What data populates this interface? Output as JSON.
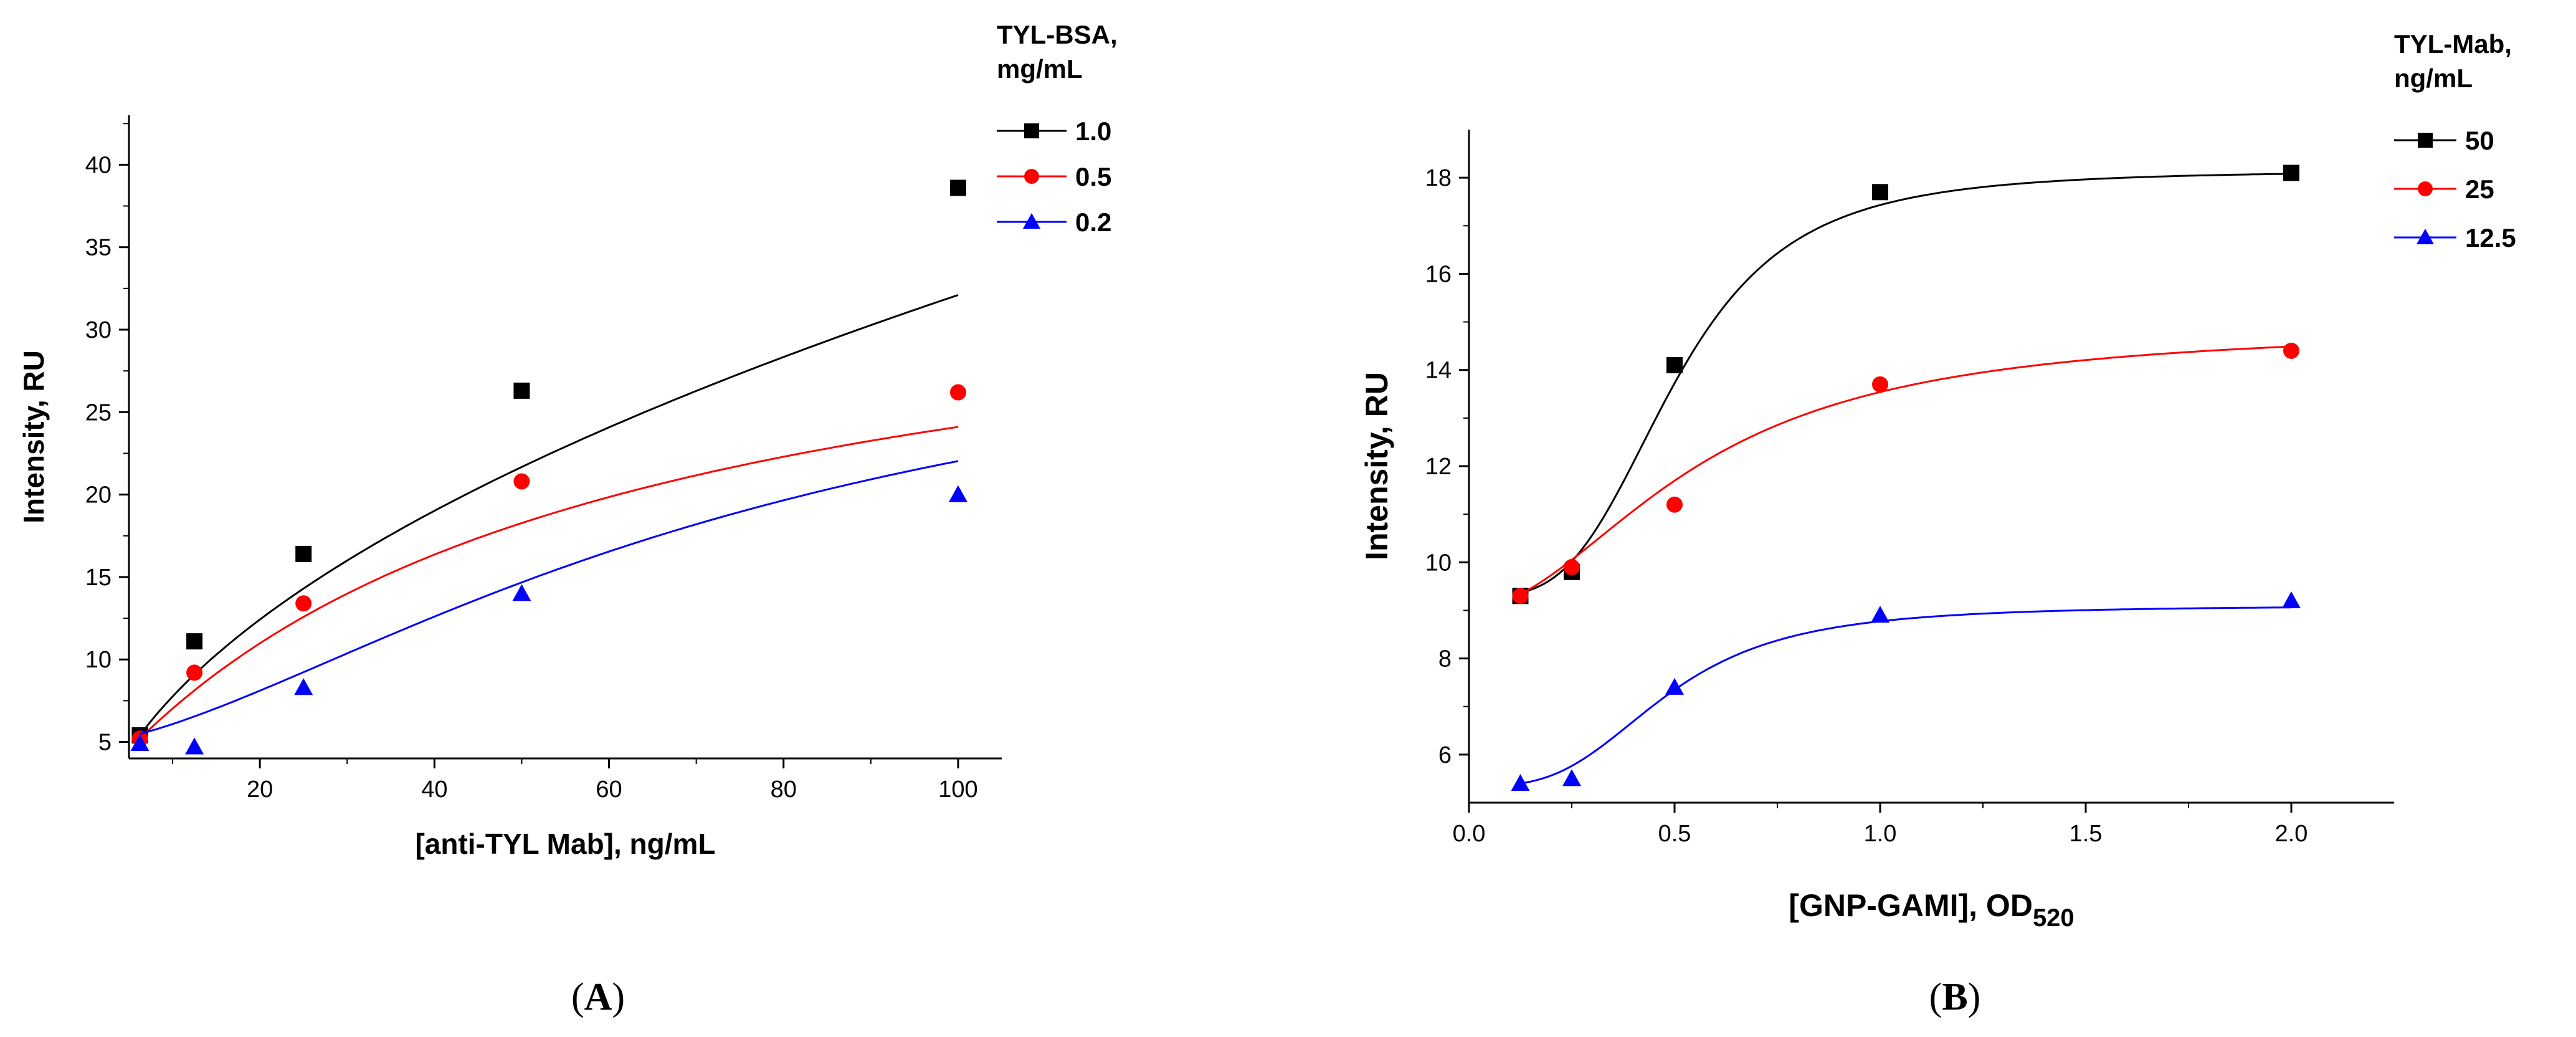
{
  "chart_data": [
    {
      "type": "scatter",
      "panel_label": "A",
      "panel_label_open": "(",
      "panel_label_close": ")",
      "xlabel": "[anti-TYL Mab], ng/mL",
      "ylabel": "Intensity, RU",
      "xlim": [
        5,
        105
      ],
      "ylim": [
        4,
        43
      ],
      "xticks": [
        20,
        40,
        60,
        80,
        100
      ],
      "yticks": [
        5,
        10,
        15,
        20,
        25,
        30,
        35,
        40
      ],
      "xtick_format": 0,
      "ytick_format": 0,
      "legend_title": [
        "TYL-BSA,",
        "mg/mL"
      ],
      "legend_position": "top-right",
      "series": [
        {
          "name": "1.0",
          "color": "#000000",
          "marker": "square",
          "x": [
            6.25,
            12.5,
            25,
            50,
            100
          ],
          "y": [
            5.4,
            11.1,
            16.4,
            26.3,
            38.6
          ],
          "fit": {
            "kind": "power",
            "a": 5.4,
            "x0": 6.25,
            "k": 3.56,
            "p": 0.5
          }
        },
        {
          "name": "0.5",
          "color": "#ff0000",
          "marker": "circle",
          "x": [
            6.25,
            12.5,
            25,
            50,
            100
          ],
          "y": [
            5.2,
            9.2,
            13.4,
            20.8,
            26.2
          ],
          "fit": {
            "kind": "hyper",
            "a": 5.2,
            "x0": 6.25,
            "A": 31.0,
            "B": 60.0
          }
        },
        {
          "name": "0.2",
          "color": "#0000ff",
          "marker": "triangle",
          "x": [
            6.25,
            12.5,
            25,
            50,
            100
          ],
          "y": [
            4.9,
            4.7,
            8.3,
            14.0,
            20.0
          ],
          "fit": {
            "kind": "hill",
            "bottom": 4.9,
            "top": 33.0,
            "x50": 75.0,
            "n": 1.55
          }
        }
      ]
    },
    {
      "type": "scatter",
      "panel_label": "B",
      "panel_label_open": "(",
      "panel_label_close": ")",
      "xlabel": "[GNP-GAMI], OD",
      "xlabel_sub": "520",
      "ylabel": "Intensity, RU",
      "xlim": [
        0,
        2.25
      ],
      "ylim": [
        5.0,
        19.0
      ],
      "xticks": [
        0.0,
        0.5,
        1.0,
        1.5,
        2.0
      ],
      "yticks": [
        6,
        8,
        10,
        12,
        14,
        16,
        18
      ],
      "xtick_format": 1,
      "ytick_format": 0,
      "legend_title": [
        "TYL-Mab,",
        "ng/mL"
      ],
      "legend_position": "top-right",
      "series": [
        {
          "name": "50",
          "color": "#000000",
          "marker": "square",
          "x": [
            0.125,
            0.25,
            0.5,
            1.0,
            2.0
          ],
          "y": [
            9.3,
            9.8,
            14.1,
            17.7,
            18.1
          ],
          "fit": {
            "kind": "hill",
            "bottom": 9.3,
            "top": 18.15,
            "x50": 0.5,
            "n": 3.5
          }
        },
        {
          "name": "25",
          "color": "#ff0000",
          "marker": "circle",
          "x": [
            0.125,
            0.25,
            0.5,
            1.0,
            2.0
          ],
          "y": [
            9.3,
            9.9,
            11.2,
            13.7,
            14.4
          ],
          "fit": {
            "kind": "hill",
            "bottom": 9.05,
            "top": 14.9,
            "x50": 0.55,
            "n": 2.0
          }
        },
        {
          "name": "12.5",
          "color": "#0000ff",
          "marker": "triangle",
          "x": [
            0.125,
            0.25,
            0.5,
            1.0,
            2.0
          ],
          "y": [
            5.4,
            5.5,
            7.4,
            8.9,
            9.2
          ],
          "fit": {
            "kind": "hill",
            "bottom": 5.35,
            "top": 9.1,
            "x50": 0.48,
            "n": 3.2
          }
        }
      ]
    }
  ]
}
